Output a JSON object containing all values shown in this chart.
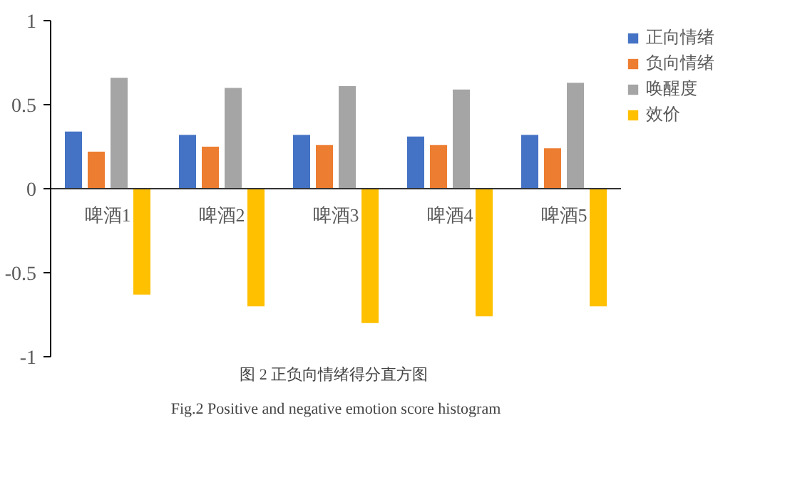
{
  "chart_data": {
    "type": "bar",
    "categories": [
      "啤酒1",
      "啤酒2",
      "啤酒3",
      "啤酒4",
      "啤酒5"
    ],
    "series": [
      {
        "name": "正向情绪",
        "color": "#4472c4",
        "values": [
          0.34,
          0.32,
          0.32,
          0.31,
          0.32
        ]
      },
      {
        "name": "负向情绪",
        "color": "#ed7d31",
        "values": [
          0.22,
          0.25,
          0.26,
          0.26,
          0.24
        ]
      },
      {
        "name": "唤醒度",
        "color": "#a5a5a5",
        "values": [
          0.66,
          0.6,
          0.61,
          0.59,
          0.63
        ]
      },
      {
        "name": "效价",
        "color": "#ffc000",
        "values": [
          -0.63,
          -0.7,
          -0.8,
          -0.76,
          -0.7
        ]
      }
    ],
    "ylim": [
      -1,
      1
    ],
    "yticks": [
      -1,
      -0.5,
      0,
      0.5,
      1
    ],
    "grid": false,
    "legend": "right",
    "annotations": [
      "图 2  正负向情绪得分直方图",
      "Fig.2 Positive and negative emotion score histogram"
    ]
  }
}
